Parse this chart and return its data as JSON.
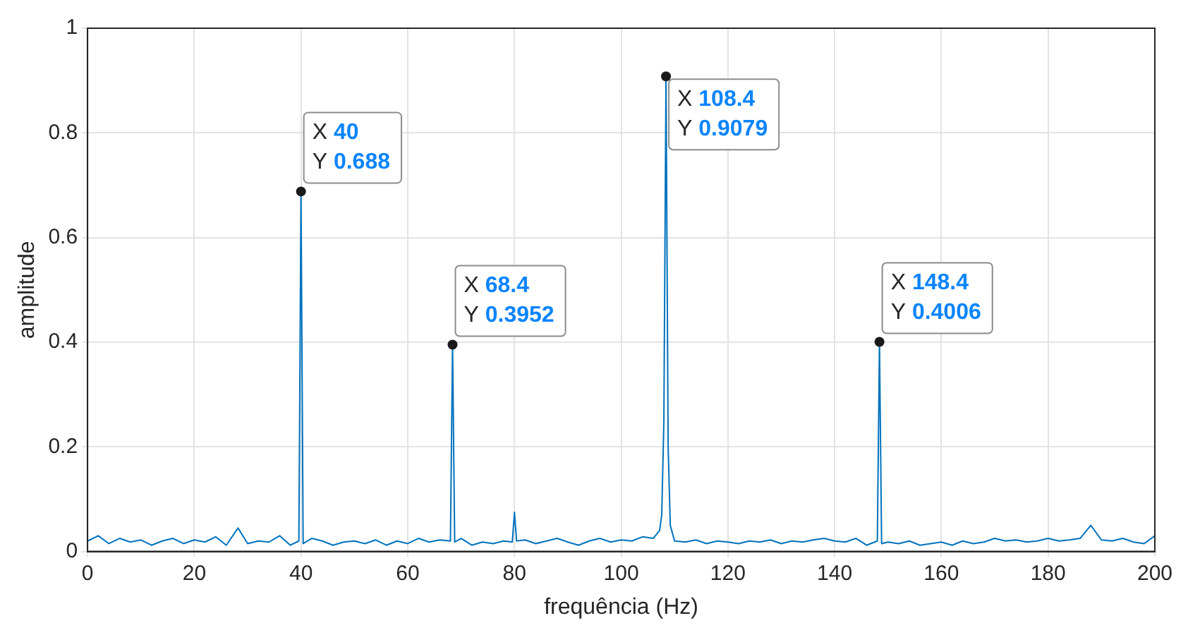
{
  "chart_data": {
    "type": "line",
    "xlabel": "frequência (Hz)",
    "ylabel": "amplitude",
    "x": [
      0,
      2,
      4,
      6,
      8,
      10,
      12,
      14,
      16,
      18,
      20,
      22,
      24,
      26,
      28.2,
      30,
      32,
      34,
      36,
      38,
      39.6,
      40,
      40.4,
      42,
      44,
      46,
      48,
      50,
      52,
      54,
      56,
      58,
      60,
      62,
      64,
      66,
      68,
      68.4,
      68.8,
      70,
      72,
      74,
      76,
      78,
      79.6,
      80,
      80.4,
      82,
      84,
      86,
      88,
      90,
      92,
      94,
      96,
      98,
      100,
      102,
      104,
      106,
      107.2,
      107.6,
      108,
      108.4,
      108.8,
      109.2,
      110,
      112,
      114,
      116,
      118,
      120,
      122,
      124,
      126,
      128,
      130,
      132,
      134,
      136,
      138,
      140,
      142,
      144,
      146,
      148,
      148.4,
      148.8,
      150,
      152,
      154,
      156,
      158,
      160,
      162,
      164,
      166,
      168,
      170,
      172,
      174,
      176,
      178,
      180,
      182,
      184,
      186,
      188,
      190,
      192,
      194,
      196,
      198,
      200
    ],
    "series": [
      {
        "color": "#0072bd",
        "values": [
          0.02,
          0.03,
          0.015,
          0.025,
          0.018,
          0.022,
          0.012,
          0.02,
          0.025,
          0.015,
          0.022,
          0.018,
          0.028,
          0.012,
          0.045,
          0.015,
          0.02,
          0.018,
          0.03,
          0.012,
          0.02,
          0.688,
          0.015,
          0.025,
          0.02,
          0.012,
          0.018,
          0.02,
          0.015,
          0.022,
          0.012,
          0.02,
          0.015,
          0.025,
          0.018,
          0.022,
          0.02,
          0.3952,
          0.018,
          0.025,
          0.012,
          0.018,
          0.015,
          0.02,
          0.018,
          0.075,
          0.02,
          0.022,
          0.015,
          0.02,
          0.025,
          0.018,
          0.012,
          0.02,
          0.025,
          0.018,
          0.022,
          0.02,
          0.028,
          0.025,
          0.04,
          0.07,
          0.25,
          0.9079,
          0.2,
          0.05,
          0.02,
          0.018,
          0.022,
          0.015,
          0.02,
          0.018,
          0.015,
          0.02,
          0.018,
          0.022,
          0.015,
          0.02,
          0.018,
          0.022,
          0.025,
          0.02,
          0.018,
          0.025,
          0.012,
          0.02,
          0.4006,
          0.015,
          0.018,
          0.015,
          0.02,
          0.012,
          0.015,
          0.018,
          0.012,
          0.02,
          0.015,
          0.018,
          0.025,
          0.02,
          0.022,
          0.018,
          0.02,
          0.025,
          0.02,
          0.022,
          0.025,
          0.05,
          0.022,
          0.02,
          0.025,
          0.018,
          0.015,
          0.03
        ]
      }
    ],
    "xlim": [
      0,
      200
    ],
    "xticks": [
      0,
      20,
      40,
      60,
      80,
      100,
      120,
      140,
      160,
      180,
      200
    ],
    "ylim": [
      0,
      1
    ],
    "yticks": [
      0,
      0.2,
      0.4,
      0.6,
      0.8,
      1
    ],
    "grid": true,
    "marker": "none",
    "line_style": "solid",
    "legend": false,
    "annotations": [
      {
        "text": "X 40\nY 0.688",
        "x": 40,
        "y": 0.688
      },
      {
        "text": "X 68.4\nY 0.3952",
        "x": 68.4,
        "y": 0.3952
      },
      {
        "text": "X 108.4\nY 0.9079",
        "x": 108.4,
        "y": 0.9079
      },
      {
        "text": "X 148.4\nY 0.4006",
        "x": 148.4,
        "y": 0.4006
      }
    ]
  }
}
